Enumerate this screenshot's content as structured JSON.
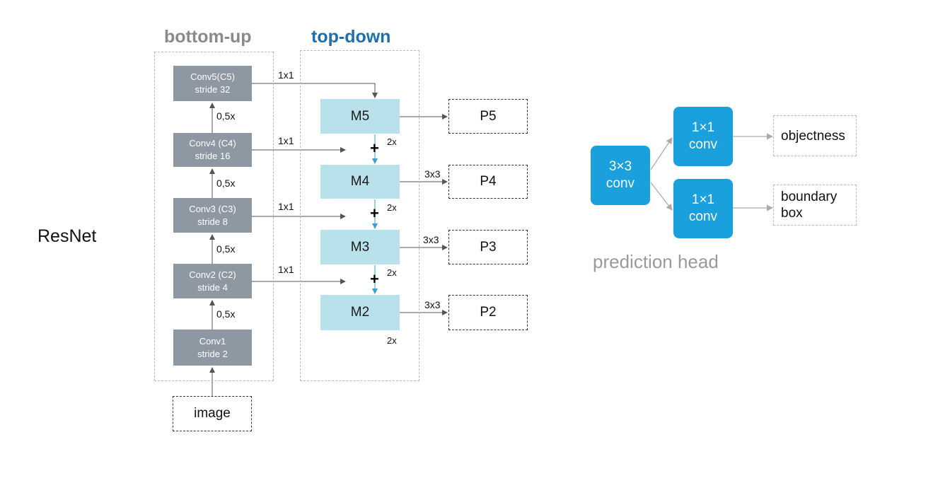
{
  "backbone_label": "ResNet",
  "sections": {
    "bottom_up": {
      "title": "bottom-up",
      "color": "#8a8a8a"
    },
    "top_down": {
      "title": "top-down",
      "color": "#1f6fae"
    },
    "prediction_head": {
      "title": "prediction head",
      "color": "#9a9a9a"
    }
  },
  "input_label": "image",
  "conv_blocks": [
    {
      "name": "Conv5(C5)",
      "stride": "stride 32"
    },
    {
      "name": "Conv4 (C4)",
      "stride": "stride 16"
    },
    {
      "name": "Conv3 (C3)",
      "stride": "stride 8"
    },
    {
      "name": "Conv2 (C2)",
      "stride": "stride 4"
    },
    {
      "name": "Conv1",
      "stride": "stride 2"
    }
  ],
  "downsample_label": "0,5x",
  "lateral_label": "1x1",
  "merge_blocks": [
    "M5",
    "M4",
    "M3",
    "M2"
  ],
  "upsample_label": "2x",
  "smooth_label": "3x3",
  "output_blocks": [
    "P5",
    "P4",
    "P3",
    "P2"
  ],
  "head": {
    "shared_conv": [
      "3×3",
      "conv"
    ],
    "branch_conv": [
      "1×1",
      "conv"
    ],
    "outputs": {
      "objectness": "objectness",
      "box": [
        "boundary",
        "box"
      ]
    }
  },
  "colors": {
    "conv_block": "#8d98a3",
    "merge_block": "#b9e1ec",
    "head_block": "#1aa0dc",
    "upsample_arrow": "#3a9fd0"
  }
}
